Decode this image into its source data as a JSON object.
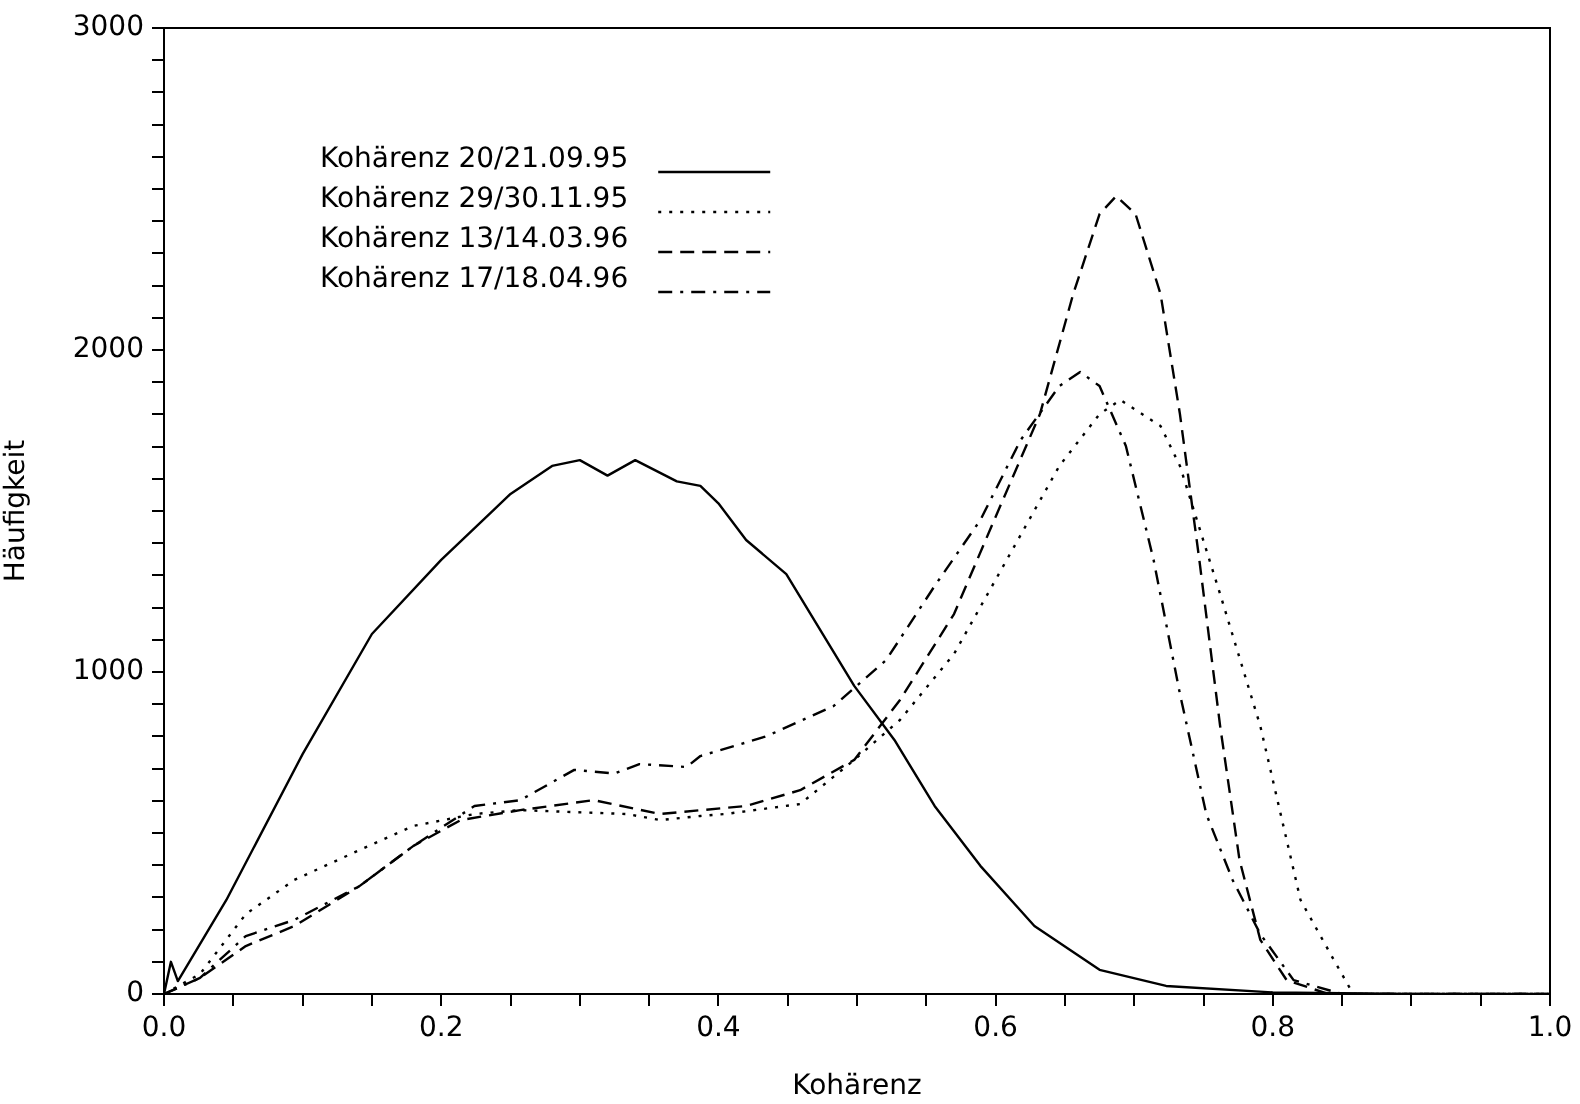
{
  "chart_data": {
    "type": "line",
    "xlabel": "Kohärenz",
    "ylabel": "Häufigkeit",
    "legend": "top left",
    "grid": false,
    "xlim": [
      0,
      1
    ],
    "ylim": [
      0,
      3000
    ],
    "xticks": [
      {
        "value": 0,
        "label": "0.0"
      },
      {
        "value": 0.05,
        "label": null
      },
      {
        "value": 0.1,
        "label": null
      },
      {
        "value": 0.15,
        "label": null
      },
      {
        "value": 0.2,
        "label": "0.2"
      },
      {
        "value": 0.25,
        "label": null
      },
      {
        "value": 0.3,
        "label": null
      },
      {
        "value": 0.35,
        "label": null
      },
      {
        "value": 0.4,
        "label": "0.4"
      },
      {
        "value": 0.45,
        "label": null
      },
      {
        "value": 0.5,
        "label": null
      },
      {
        "value": 0.55,
        "label": null
      },
      {
        "value": 0.6,
        "label": "0.6"
      },
      {
        "value": 0.65,
        "label": null
      },
      {
        "value": 0.7,
        "label": null
      },
      {
        "value": 0.75,
        "label": null
      },
      {
        "value": 0.8,
        "label": "0.8"
      },
      {
        "value": 0.85,
        "label": null
      },
      {
        "value": 0.9,
        "label": null
      },
      {
        "value": 0.95,
        "label": null
      },
      {
        "value": 1,
        "label": "1.0"
      }
    ],
    "yticks": [
      0,
      {
        "value": 100,
        "label": null
      },
      {
        "value": 200,
        "label": null
      },
      {
        "value": 300,
        "label": null
      },
      {
        "value": 400,
        "label": null
      },
      {
        "value": 500,
        "label": null
      },
      {
        "value": 600,
        "label": null
      },
      {
        "value": 700,
        "label": null
      },
      {
        "value": 800,
        "label": null
      },
      {
        "value": 900,
        "label": null
      },
      1000,
      {
        "value": 1100,
        "label": null
      },
      {
        "value": 1200,
        "label": null
      },
      {
        "value": 1300,
        "label": null
      },
      {
        "value": 1400,
        "label": null
      },
      {
        "value": 1500,
        "label": null
      },
      {
        "value": 1600,
        "label": null
      },
      {
        "value": 1700,
        "label": null
      },
      {
        "value": 1800,
        "label": null
      },
      {
        "value": 1900,
        "label": null
      },
      2000,
      {
        "value": 2100,
        "label": null
      },
      {
        "value": 2200,
        "label": null
      },
      {
        "value": 2300,
        "label": null
      },
      {
        "value": 2400,
        "label": null
      },
      {
        "value": 2500,
        "label": null
      },
      {
        "value": 2600,
        "label": null
      },
      {
        "value": 2700,
        "label": null
      },
      {
        "value": 2800,
        "label": null
      },
      {
        "value": 2900,
        "label": null
      },
      3000
    ],
    "series": [
      {
        "name": "Kohärenz 20/21.09.95",
        "color": "#000000",
        "line_style": "solid",
        "x": [
          0,
          0.005,
          0.01,
          0.045,
          0.1,
          0.15,
          0.2,
          0.25,
          0.28,
          0.3,
          0.32,
          0.34,
          0.37,
          0.387,
          0.4,
          0.42,
          0.449,
          0.498,
          0.527,
          0.556,
          0.589,
          0.628,
          0.675,
          0.723,
          0.8,
          0.9,
          1
        ],
        "values": [
          0,
          100,
          40,
          292,
          745,
          1118,
          1348,
          1553,
          1640,
          1658,
          1610,
          1658,
          1592,
          1578,
          1524,
          1410,
          1304,
          957,
          789,
          584,
          398,
          211,
          75,
          25,
          5,
          0,
          0
        ]
      },
      {
        "name": "Kohärenz 29/30.11.95",
        "color": "#000000",
        "line_style": "dotted",
        "x": [
          0,
          0.026,
          0.059,
          0.094,
          0.141,
          0.18,
          0.224,
          0.257,
          0.334,
          0.358,
          0.387,
          0.405,
          0.459,
          0.498,
          0.531,
          0.57,
          0.608,
          0.646,
          0.675,
          0.69,
          0.719,
          0.733,
          0.762,
          0.791,
          0.82,
          0.844,
          0.858,
          0.9,
          1
        ],
        "values": [
          0,
          62,
          248,
          354,
          447,
          522,
          559,
          571,
          559,
          540,
          553,
          559,
          590,
          727,
          851,
          1056,
          1348,
          1640,
          1801,
          1845,
          1764,
          1640,
          1242,
          832,
          292,
          106,
          0,
          0,
          0
        ]
      },
      {
        "name": "Kohärenz 13/14.03.96",
        "color": "#000000",
        "line_style": "dashed",
        "x": [
          0,
          0.026,
          0.059,
          0.094,
          0.141,
          0.18,
          0.214,
          0.257,
          0.31,
          0.358,
          0.42,
          0.459,
          0.498,
          0.531,
          0.57,
          0.599,
          0.632,
          0.656,
          0.675,
          0.687,
          0.701,
          0.719,
          0.733,
          0.747,
          0.762,
          0.776,
          0.791,
          0.81,
          0.84,
          0.9,
          1
        ],
        "values": [
          0,
          50,
          149,
          211,
          335,
          460,
          540,
          571,
          602,
          559,
          584,
          633,
          727,
          913,
          1180,
          1472,
          1801,
          2174,
          2422,
          2478,
          2422,
          2174,
          1801,
          1348,
          832,
          416,
          168,
          43,
          0,
          0,
          0
        ]
      },
      {
        "name": "Kohärenz 17/18.04.96",
        "color": "#000000",
        "line_style": "dashdot",
        "x": [
          0,
          0.026,
          0.059,
          0.094,
          0.141,
          0.18,
          0.224,
          0.257,
          0.296,
          0.325,
          0.343,
          0.377,
          0.387,
          0.416,
          0.435,
          0.483,
          0.521,
          0.556,
          0.589,
          0.618,
          0.646,
          0.661,
          0.675,
          0.694,
          0.714,
          0.733,
          0.752,
          0.771,
          0.791,
          0.815,
          0.85,
          0.9,
          1
        ],
        "values": [
          0,
          50,
          180,
          230,
          335,
          460,
          584,
          602,
          696,
          685,
          714,
          705,
          739,
          776,
          801,
          894,
          1037,
          1267,
          1472,
          1720,
          1888,
          1932,
          1888,
          1702,
          1348,
          932,
          559,
          354,
          186,
          43,
          0,
          0,
          0
        ]
      }
    ]
  }
}
